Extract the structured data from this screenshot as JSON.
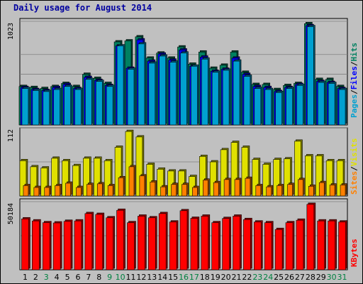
{
  "chart_data": [
    {
      "type": "bar",
      "title": "Daily usage for August 2014",
      "panel": "top",
      "ylim": [
        0,
        1023
      ],
      "ytick_label": "1023",
      "grid": true,
      "legend": [
        {
          "label": "Pages",
          "color": "#00a0d0"
        },
        {
          "label": "Files",
          "color": "#0000ff"
        },
        {
          "label": "Hits",
          "color": "#008060"
        }
      ],
      "categories": [
        "1",
        "2",
        "3",
        "4",
        "5",
        "6",
        "7",
        "8",
        "9",
        "10",
        "11",
        "12",
        "13",
        "14",
        "15",
        "16",
        "17",
        "18",
        "19",
        "20",
        "21",
        "22",
        "23",
        "24",
        "25",
        "26",
        "27",
        "28",
        "29",
        "30",
        "31"
      ],
      "category_colors": [
        "#000000",
        "#000000",
        "#008040",
        "#000000",
        "#000000",
        "#000000",
        "#000000",
        "#000000",
        "#008040",
        "#008040",
        "#000000",
        "#000000",
        "#000000",
        "#000000",
        "#000000",
        "#008040",
        "#008040",
        "#000000",
        "#000000",
        "#000000",
        "#000000",
        "#000000",
        "#008040",
        "#008040",
        "#000000",
        "#000000",
        "#000000",
        "#000000",
        "#000000",
        "#008040",
        "#008040"
      ],
      "series": [
        {
          "name": "Hits",
          "values": [
            380,
            370,
            360,
            380,
            410,
            380,
            500,
            460,
            410,
            820,
            830,
            870,
            660,
            710,
            660,
            770,
            600,
            720,
            560,
            590,
            720,
            520,
            400,
            400,
            350,
            390,
            410,
            1000,
            450,
            450,
            380
          ]
        },
        {
          "name": "Files",
          "values": [
            370,
            350,
            340,
            370,
            400,
            360,
            470,
            440,
            390,
            780,
            560,
            840,
            630,
            700,
            640,
            740,
            580,
            670,
            530,
            550,
            660,
            500,
            380,
            370,
            330,
            370,
            400,
            980,
            430,
            420,
            360
          ]
        },
        {
          "name": "Pages",
          "values": [
            360,
            340,
            330,
            350,
            380,
            350,
            450,
            430,
            380,
            780,
            550,
            800,
            610,
            680,
            620,
            710,
            580,
            650,
            520,
            540,
            630,
            480,
            360,
            350,
            320,
            360,
            390,
            970,
            420,
            410,
            350
          ]
        }
      ]
    },
    {
      "type": "bar",
      "panel": "middle",
      "ylim": [
        0,
        112
      ],
      "ytick_label": "112",
      "grid": true,
      "legend": [
        {
          "label": "Sites",
          "color": "#ff8000"
        },
        {
          "label": "Visits",
          "color": "#e0e000"
        }
      ],
      "series": [
        {
          "name": "Visits",
          "values": [
            58,
            48,
            46,
            62,
            58,
            50,
            62,
            62,
            58,
            80,
            106,
            97,
            52,
            44,
            41,
            41,
            32,
            65,
            56,
            76,
            88,
            80,
            60,
            52,
            60,
            61,
            90,
            66,
            66,
            58,
            58
          ]
        },
        {
          "name": "Sites",
          "values": [
            17,
            14,
            14,
            17,
            21,
            14,
            19,
            20,
            17,
            30,
            48,
            33,
            23,
            15,
            19,
            19,
            14,
            26,
            22,
            27,
            27,
            29,
            17,
            15,
            17,
            19,
            27,
            16,
            22,
            18,
            18
          ]
        }
      ]
    },
    {
      "type": "bar",
      "panel": "bottom",
      "ylim": [
        0,
        50184
      ],
      "ytick_label": "50184",
      "grid": true,
      "legend": [
        {
          "label": "KBytes",
          "color": "#ff0000"
        }
      ],
      "series": [
        {
          "name": "KBytes",
          "values": [
            37500,
            36000,
            34700,
            34500,
            35700,
            36000,
            41400,
            40800,
            38300,
            43800,
            34700,
            39500,
            38300,
            41400,
            35200,
            43500,
            37900,
            39500,
            34700,
            37800,
            39500,
            37000,
            35200,
            34700,
            29700,
            34700,
            36500,
            48200,
            36000,
            36000,
            35200
          ]
        }
      ]
    }
  ]
}
